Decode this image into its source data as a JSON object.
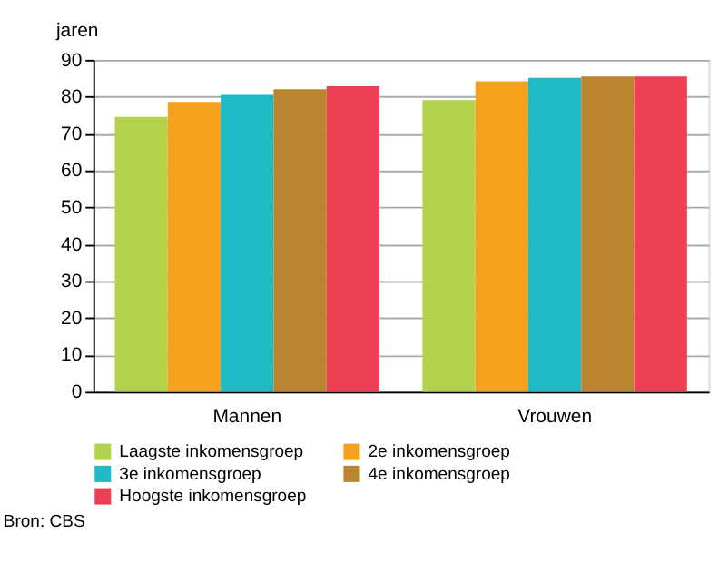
{
  "chart_data": {
    "type": "bar",
    "ylabel": "jaren",
    "categories": [
      "Mannen",
      "Vrouwen"
    ],
    "series": [
      {
        "name": "Laagste inkomensgroep",
        "color": "#b2d34b",
        "values": [
          74.5,
          79.1
        ]
      },
      {
        "name": "2e inkomensgroep",
        "color": "#f7a21f",
        "values": [
          78.6,
          84.2
        ]
      },
      {
        "name": "3e inkomensgroep",
        "color": "#1fbac6",
        "values": [
          80.5,
          85.1
        ]
      },
      {
        "name": "4e inkomensgroep",
        "color": "#bb8530",
        "values": [
          82.0,
          85.5
        ]
      },
      {
        "name": "Hoogste inkomensgroep",
        "color": "#ee4055",
        "values": [
          82.8,
          85.5
        ]
      }
    ],
    "ylim": [
      0,
      90
    ],
    "yticks": [
      0,
      10,
      20,
      30,
      40,
      50,
      60,
      70,
      80,
      90
    ],
    "grid": "y",
    "legend": "bottom",
    "annotations": [
      "Bron: CBS"
    ]
  }
}
